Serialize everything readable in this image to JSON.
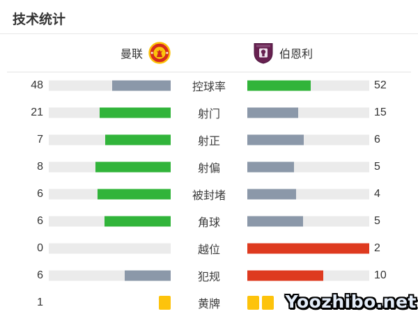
{
  "page": {
    "title": "技术统计"
  },
  "header": {
    "home_team": "曼联",
    "away_team": "伯恩利"
  },
  "watermark": "Yoozhibo.net",
  "colors": {
    "green": "#31b43a",
    "gray": "#8b98a9",
    "red": "#de3a1f",
    "yellow": "#fdc30c",
    "track": "#ebebeb",
    "none": "transparent"
  },
  "rows": [
    {
      "label": "控球率",
      "home": "48",
      "away": "52",
      "home_fill": {
        "pct": 48,
        "color": "gray"
      },
      "away_fill": {
        "pct": 52,
        "color": "green"
      }
    },
    {
      "label": "射门",
      "home": "21",
      "away": "15",
      "home_fill": {
        "pct": 58.3,
        "color": "green"
      },
      "away_fill": {
        "pct": 41.7,
        "color": "gray"
      }
    },
    {
      "label": "射正",
      "home": "7",
      "away": "6",
      "home_fill": {
        "pct": 53.8,
        "color": "green"
      },
      "away_fill": {
        "pct": 46.2,
        "color": "gray"
      }
    },
    {
      "label": "射偏",
      "home": "8",
      "away": "5",
      "home_fill": {
        "pct": 61.5,
        "color": "green"
      },
      "away_fill": {
        "pct": 38.5,
        "color": "gray"
      }
    },
    {
      "label": "被封堵",
      "home": "6",
      "away": "4",
      "home_fill": {
        "pct": 60,
        "color": "green"
      },
      "away_fill": {
        "pct": 40,
        "color": "gray"
      }
    },
    {
      "label": "角球",
      "home": "6",
      "away": "5",
      "home_fill": {
        "pct": 54.5,
        "color": "green"
      },
      "away_fill": {
        "pct": 45.5,
        "color": "gray"
      }
    },
    {
      "label": "越位",
      "home": "0",
      "away": "2",
      "home_fill": {
        "pct": 0,
        "color": "none"
      },
      "away_fill": {
        "pct": 100,
        "color": "red"
      }
    },
    {
      "label": "犯规",
      "home": "6",
      "away": "10",
      "home_fill": {
        "pct": 37.5,
        "color": "gray"
      },
      "away_fill": {
        "pct": 62.5,
        "color": "red"
      }
    },
    {
      "label": "黄牌",
      "home": "1",
      "away": "",
      "home_cards": 1,
      "away_cards": 2
    }
  ],
  "chart_data": {
    "type": "bar",
    "title": "技术统计",
    "orientation": "horizontal-mirrored",
    "categories": [
      "控球率",
      "射门",
      "射正",
      "射偏",
      "被封堵",
      "角球",
      "越位",
      "犯规",
      "黄牌"
    ],
    "series": [
      {
        "name": "曼联",
        "values": [
          48,
          21,
          7,
          8,
          6,
          6,
          0,
          6,
          1
        ]
      },
      {
        "name": "伯恩利",
        "values": [
          52,
          15,
          6,
          5,
          4,
          5,
          2,
          10,
          2
        ]
      }
    ],
    "legend_position": "top",
    "notes": "winner bar green, loser bar gray-blue; negative stats (越位/犯规) highlighted red; 黄牌 shown as yellow card icons"
  }
}
